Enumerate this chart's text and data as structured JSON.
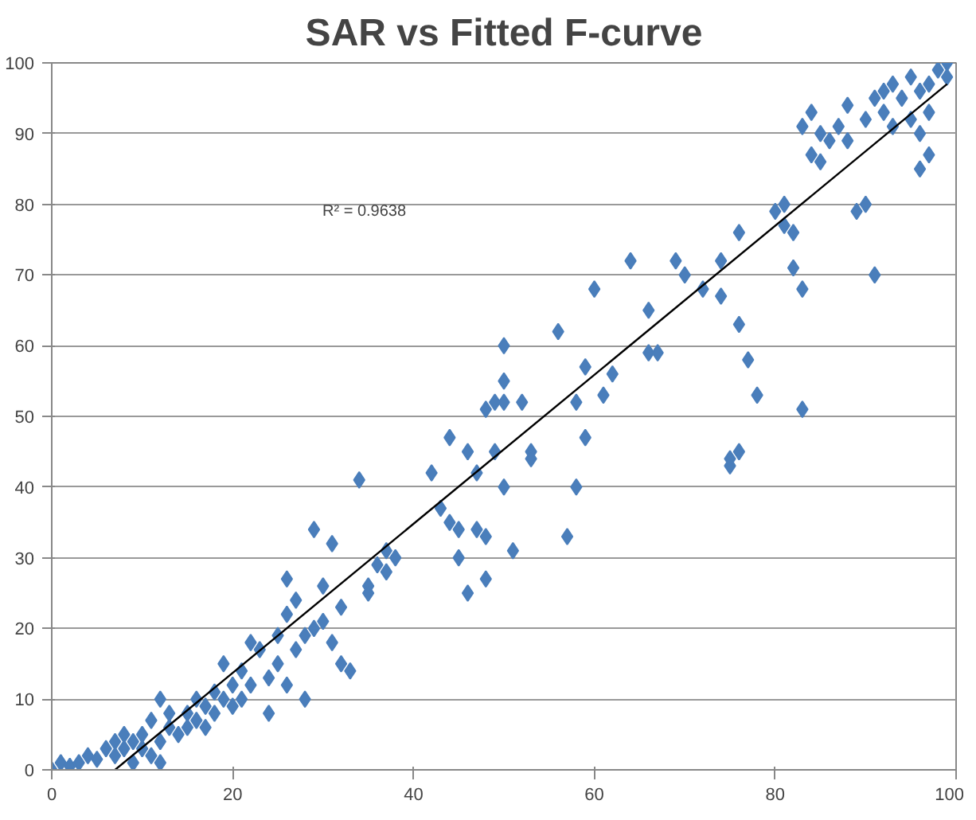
{
  "chart_data": {
    "type": "scatter",
    "title": "SAR vs Fitted F-curve",
    "xlim": [
      0,
      100
    ],
    "ylim": [
      0,
      100
    ],
    "xticks": [
      0,
      20,
      40,
      60,
      80,
      100
    ],
    "yticks": [
      0,
      10,
      20,
      30,
      40,
      50,
      60,
      70,
      80,
      90,
      100
    ],
    "grid": "y",
    "marker": "diamond",
    "annotations": [
      "R² = 0.9638"
    ],
    "series": [
      {
        "color": "#4a7ebb",
        "x": [
          0,
          1,
          2,
          3,
          4,
          5,
          6,
          7,
          7,
          8,
          8,
          9,
          9,
          10,
          10,
          11,
          11,
          12,
          12,
          12,
          13,
          13,
          14,
          15,
          15,
          16,
          16,
          17,
          17,
          18,
          18,
          19,
          19,
          20,
          20,
          21,
          21,
          22,
          22,
          23,
          24,
          24,
          25,
          25,
          26,
          26,
          26,
          27,
          27,
          28,
          28,
          29,
          29,
          30,
          30,
          31,
          31,
          32,
          32,
          33,
          34,
          35,
          35,
          36,
          37,
          37,
          38,
          42,
          43,
          44,
          44,
          45,
          45,
          46,
          46,
          47,
          47,
          48,
          48,
          48,
          49,
          49,
          50,
          50,
          50,
          50,
          51,
          52,
          53,
          53,
          56,
          57,
          58,
          58,
          59,
          59,
          60,
          61,
          62,
          64,
          66,
          66,
          67,
          69,
          70,
          72,
          74,
          74,
          75,
          75,
          76,
          76,
          76,
          77,
          78,
          80,
          81,
          81,
          82,
          82,
          83,
          83,
          83,
          84,
          84,
          85,
          85,
          86,
          87,
          88,
          88,
          89,
          90,
          90,
          91,
          91,
          92,
          92,
          93,
          93,
          94,
          95,
          95,
          96,
          96,
          96,
          97,
          97,
          97,
          98,
          99,
          99
        ],
        "values": [
          0,
          1,
          0.5,
          1,
          2,
          1.5,
          3,
          2,
          4,
          3,
          5,
          1,
          4,
          3,
          5,
          2,
          7,
          10,
          1,
          4,
          6,
          8,
          5,
          8,
          6,
          10,
          7,
          9,
          6,
          11,
          8,
          15,
          10,
          12,
          9,
          14,
          10,
          18,
          12,
          17,
          8,
          13,
          19,
          15,
          27,
          12,
          22,
          24,
          17,
          19,
          10,
          20,
          34,
          26,
          21,
          32,
          18,
          23,
          15,
          14,
          41,
          26,
          25,
          29,
          31,
          28,
          30,
          42,
          37,
          47,
          35,
          34,
          30,
          45,
          25,
          42,
          34,
          27,
          33,
          51,
          45,
          52,
          60,
          52,
          55,
          40,
          31,
          52,
          45,
          44,
          62,
          33,
          40,
          52,
          47,
          57,
          68,
          53,
          56,
          72,
          65,
          59,
          59,
          72,
          70,
          68,
          67,
          72,
          43,
          44,
          63,
          45,
          76,
          58,
          53,
          79,
          80,
          77,
          71,
          76,
          68,
          51,
          91,
          93,
          87,
          86,
          90,
          89,
          91,
          94,
          89,
          79,
          80,
          92,
          70,
          95,
          93,
          96,
          97,
          91,
          95,
          98,
          92,
          85,
          90,
          96,
          87,
          93,
          97,
          99,
          100,
          98
        ]
      },
      {
        "type": "line",
        "marker": "none",
        "color": "#000000",
        "x": [
          7,
          99
        ],
        "values": [
          0,
          97
        ]
      }
    ]
  }
}
